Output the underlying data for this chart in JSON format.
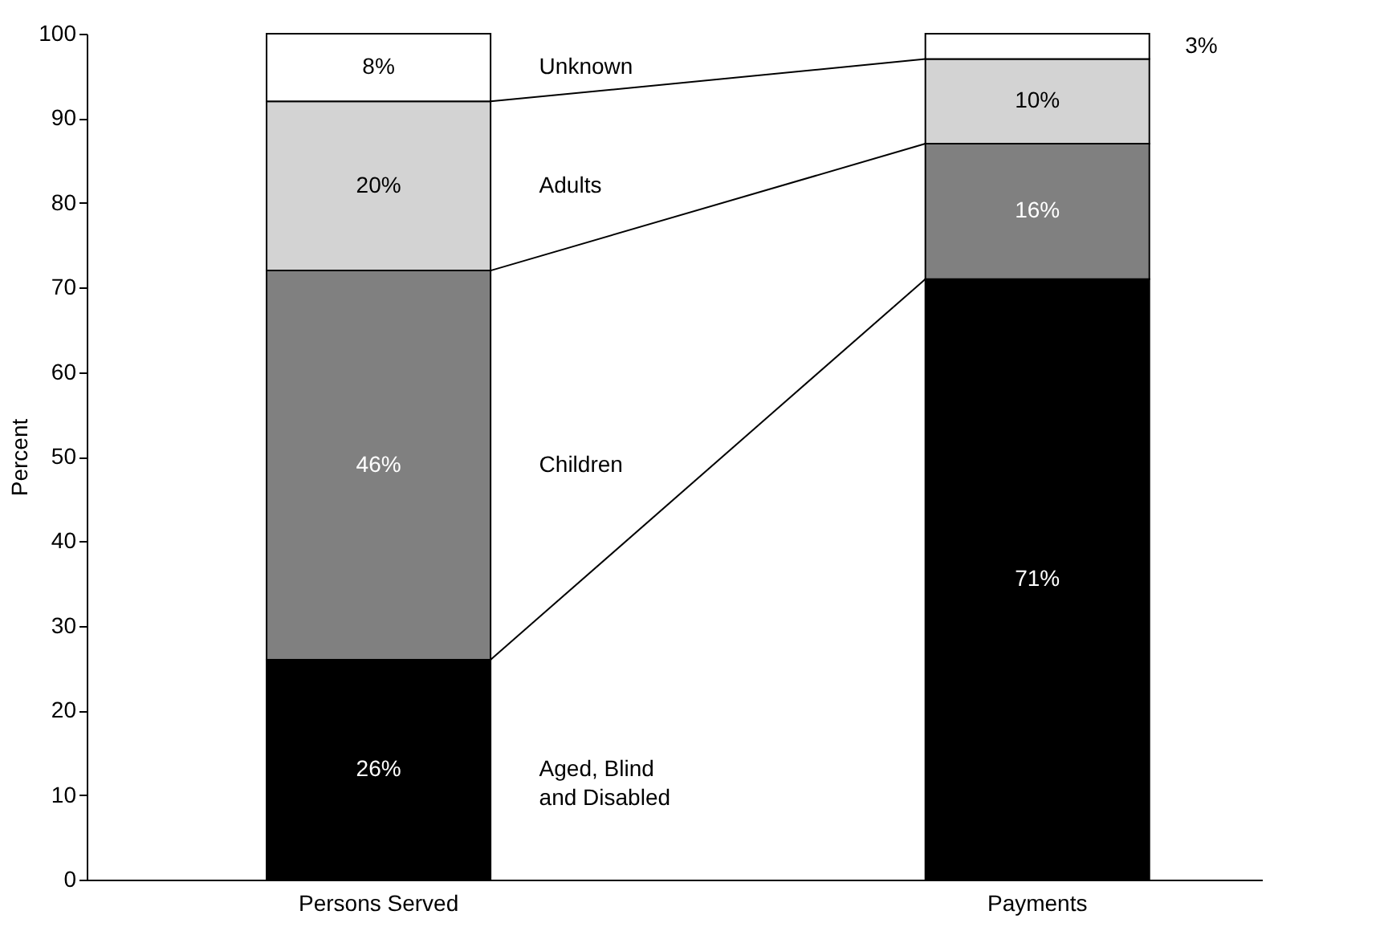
{
  "chart_data": {
    "type": "bar",
    "stacked": true,
    "ylabel": "Percent",
    "categories": [
      "Persons Served",
      "Payments"
    ],
    "series": [
      {
        "name": "Aged, Blind\nand Disabled",
        "color": "#000000",
        "values": [
          26,
          71
        ]
      },
      {
        "name": "Children",
        "color": "#808080",
        "values": [
          46,
          16
        ]
      },
      {
        "name": "Adults",
        "color": "#d3d3d3",
        "values": [
          20,
          10
        ]
      },
      {
        "name": "Unknown",
        "color": "#ffffff",
        "values": [
          8,
          3
        ]
      }
    ],
    "value_labels": [
      [
        "26%",
        "71%"
      ],
      [
        "46%",
        "16%"
      ],
      [
        "20%",
        "10%"
      ],
      [
        "8%",
        "3%"
      ]
    ],
    "ylim": [
      0,
      100
    ],
    "yticks": [
      0,
      10,
      20,
      30,
      40,
      50,
      60,
      70,
      80,
      90,
      100
    ],
    "grid": false
  }
}
